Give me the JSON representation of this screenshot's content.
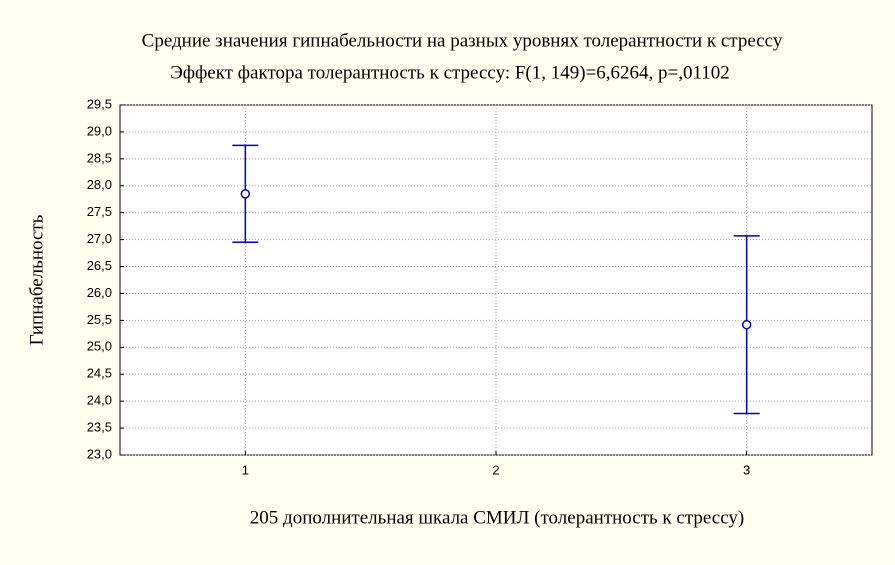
{
  "chart_data": {
    "type": "errorbar",
    "title": "Средние значения гипнабельности на разных уровнях толерантности к стрессу",
    "subtitle": "Эффект фактора толерантность к стрессу: F(1, 149)=6,6264, p=,01102",
    "xlabel": "205 дополнительная шкала СМИЛ (толерантность к стрессу)",
    "ylabel": "Гипнабельность",
    "x": [
      1,
      3
    ],
    "series": [
      {
        "color": "#0000c0",
        "values": [
          27.85,
          25.42
        ],
        "errors": [
          0.9,
          1.65
        ]
      }
    ],
    "xlim": [
      0.5,
      3.5
    ],
    "xticks": [
      1,
      2,
      3
    ],
    "ylim": [
      23.0,
      29.5
    ],
    "yticks": [
      {
        "value": 23.0,
        "label": "23,0"
      },
      {
        "value": 23.5,
        "label": "23,5"
      },
      {
        "value": 24.0,
        "label": "24,0"
      },
      {
        "value": 24.5,
        "label": "24,5"
      },
      {
        "value": 25.0,
        "label": "25,0"
      },
      {
        "value": 25.5,
        "label": "25,5"
      },
      {
        "value": 26.0,
        "label": "26,0"
      },
      {
        "value": 26.5,
        "label": "26,5"
      },
      {
        "value": 27.0,
        "label": "27,0"
      },
      {
        "value": 27.5,
        "label": "27,5"
      },
      {
        "value": 28.0,
        "label": "28,0"
      },
      {
        "value": 28.5,
        "label": "28,5"
      },
      {
        "value": 29.0,
        "label": "29,0"
      },
      {
        "value": 29.5,
        "label": "29,5"
      }
    ],
    "grid": true
  }
}
